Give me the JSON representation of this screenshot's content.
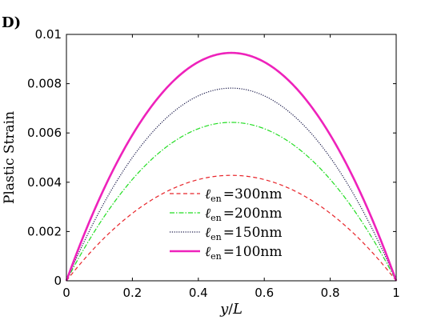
{
  "chart_data": {
    "type": "line",
    "panel_label": "D)",
    "title": "",
    "xlabel": {
      "italic_var": "y",
      "rest": "/",
      "italic_var2": "L"
    },
    "ylabel": "Plastic Strain",
    "xlim": [
      0,
      1
    ],
    "ylim": [
      0,
      0.01
    ],
    "xticks": [
      0,
      0.2,
      0.4,
      0.6,
      0.8,
      1
    ],
    "xtick_labels": [
      "0",
      "0.2",
      "0.4",
      "0.6",
      "0.8",
      "1"
    ],
    "yticks": [
      0,
      0.002,
      0.004,
      0.006,
      0.008,
      0.01
    ],
    "ytick_labels": [
      "0",
      "0.002",
      "0.004",
      "0.006",
      "0.008",
      "0.01"
    ],
    "grid": false,
    "legend_placement": "bottom-center",
    "series": [
      {
        "legend_symbol": "ℓ",
        "legend_subscript": "en",
        "legend_value": "=300nm",
        "peak": 0.00428,
        "color": "#e8242a",
        "style": "dashed",
        "width": 1.2
      },
      {
        "legend_symbol": "ℓ",
        "legend_subscript": "en",
        "legend_value": "=200nm",
        "peak": 0.00643,
        "color": "#22dd22",
        "style": "dashdot",
        "width": 1.2
      },
      {
        "legend_symbol": "ℓ",
        "legend_subscript": "en",
        "legend_value": "=150nm",
        "peak": 0.00782,
        "color": "#1a1a4a",
        "style": "dotted",
        "width": 1.2
      },
      {
        "legend_symbol": "ℓ",
        "legend_subscript": "en",
        "legend_value": "=100nm",
        "peak": 0.00925,
        "color": "#ee22bb",
        "style": "solid",
        "width": 2.6
      }
    ]
  }
}
